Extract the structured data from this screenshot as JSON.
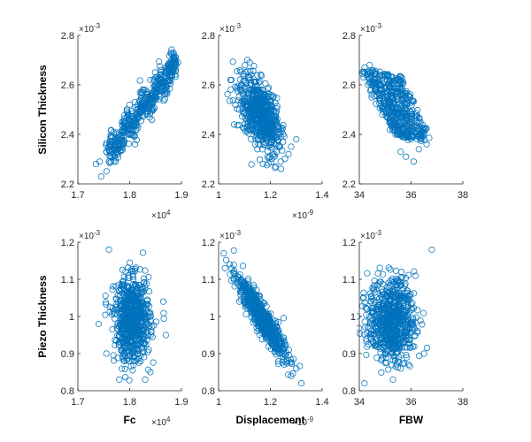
{
  "chart_data": {
    "type": "scatter",
    "marker": "open-circle",
    "color": "#0072BD",
    "grid": false,
    "x_labels": [
      "Fc",
      "Displacement",
      "FBW"
    ],
    "y_labels": [
      "Silicon Thickness",
      "Piezo Thickness"
    ],
    "multiplier_labels": {
      "x10e4": "×10^4",
      "x10e-9": "×10^-9",
      "x10e-3": "×10^-3"
    },
    "panels": [
      {
        "row": 0,
        "col": 0,
        "xlabel": "",
        "ylabel": "Silicon Thickness",
        "xlim": [
          17000,
          19000
        ],
        "ylim": [
          0.0022,
          0.0028
        ],
        "xticks": [
          17000,
          18000,
          19000
        ],
        "xtick_labels": [
          "1.7",
          "1.8",
          "1.9"
        ],
        "yticks": [
          0.0022,
          0.0024,
          0.0026,
          0.0028
        ],
        "ytick_labels": [
          "2.2",
          "2.4",
          "2.6",
          "2.8"
        ],
        "x_exponent": "×10^4",
        "y_exponent": "×10^-3",
        "points": [
          [
            17350,
            0.00228
          ],
          [
            17450,
            0.00223
          ],
          [
            17420,
            0.00229
          ],
          [
            17550,
            0.00233
          ],
          [
            17650,
            0.00234
          ],
          [
            17750,
            0.0024
          ],
          [
            17850,
            0.00245
          ],
          [
            17950,
            0.0025
          ],
          [
            18000,
            0.00252
          ],
          [
            18100,
            0.00253
          ],
          [
            18200,
            0.00257
          ],
          [
            18300,
            0.00258
          ],
          [
            18400,
            0.00262
          ],
          [
            18500,
            0.00263
          ],
          [
            18600,
            0.00266
          ],
          [
            18700,
            0.00267
          ],
          [
            18800,
            0.00269
          ],
          [
            18850,
            0.0027
          ],
          [
            18900,
            0.00268
          ],
          [
            17600,
            0.00229
          ]
        ],
        "clusters": [
          {
            "type": "band",
            "from": [
              17580,
              0.00232
            ],
            "to": [
              18900,
              0.00268
            ],
            "half_width_y": 6.5e-05,
            "n": 450
          }
        ]
      },
      {
        "row": 0,
        "col": 1,
        "xlabel": "",
        "ylabel": "",
        "xlim": [
          1e-09,
          1.4e-09
        ],
        "ylim": [
          0.0022,
          0.0028
        ],
        "xticks": [
          1e-09,
          1.2e-09,
          1.4e-09
        ],
        "xtick_labels": [
          "1",
          "1.2",
          "1.4"
        ],
        "yticks": [
          0.0022,
          0.0024,
          0.0026,
          0.0028
        ],
        "ytick_labels": [
          "2.2",
          "2.4",
          "2.6",
          "2.8"
        ],
        "x_exponent": "×10^-9",
        "y_exponent": "×10^-3",
        "points": [
          [
            1.12e-09,
            0.00269
          ],
          [
            1.27e-09,
            0.00232
          ],
          [
            1.24e-09,
            0.00229
          ],
          [
            1.08e-09,
            0.0025
          ],
          [
            1.15e-09,
            0.00234
          ],
          [
            1.3e-09,
            0.00238
          ],
          [
            1.05e-09,
            0.00262
          ],
          [
            1.22e-09,
            0.00227
          ],
          [
            1.28e-09,
            0.00235
          ],
          [
            1.06e-09,
            0.00244
          ]
        ],
        "clusters": [
          {
            "type": "blob",
            "center": [
              1.16e-09,
              0.00248
            ],
            "sd": [
              4e-11,
              7.5e-05
            ],
            "rho": -0.55,
            "n": 650
          }
        ]
      },
      {
        "row": 0,
        "col": 2,
        "xlabel": "",
        "ylabel": "",
        "xlim": [
          34,
          38
        ],
        "ylim": [
          0.0022,
          0.0028
        ],
        "xticks": [
          34,
          36,
          38
        ],
        "xtick_labels": [
          "34",
          "36",
          "38"
        ],
        "yticks": [
          0.0022,
          0.0024,
          0.0026,
          0.0028
        ],
        "ytick_labels": [
          "2.2",
          "2.4",
          "2.6",
          "2.8"
        ],
        "x_exponent": "",
        "y_exponent": "×10^-3",
        "points": [
          [
            34.2,
            0.00267
          ],
          [
            34.4,
            0.00268
          ],
          [
            34.6,
            0.00265
          ],
          [
            36.3,
            0.00234
          ],
          [
            36.6,
            0.00236
          ],
          [
            36.1,
            0.00229
          ],
          [
            35.6,
            0.00233
          ],
          [
            35.8,
            0.00231
          ],
          [
            36.0,
            0.00238
          ],
          [
            34.9,
            0.00263
          ]
        ],
        "clusters": [
          {
            "type": "stripes",
            "x_range": [
              34.3,
              36.6
            ],
            "y_top": 0.00264,
            "y_bottom": 0.00239,
            "count": 12,
            "n": 500
          }
        ]
      },
      {
        "row": 1,
        "col": 0,
        "xlabel": "Fc",
        "ylabel": "Piezo Thickness",
        "xlim": [
          17000,
          19000
        ],
        "ylim": [
          0.0008,
          0.0012
        ],
        "xticks": [
          17000,
          18000,
          19000
        ],
        "xtick_labels": [
          "1.7",
          "1.8",
          "1.9"
        ],
        "yticks": [
          0.0008,
          0.0009,
          0.001,
          0.0011,
          0.0012
        ],
        "ytick_labels": [
          "0.8",
          "0.9",
          "1",
          "1.1",
          "1.2"
        ],
        "x_exponent": "×10^4",
        "y_exponent": "×10^-3",
        "points": [
          [
            17600,
            0.00118
          ],
          [
            17400,
            0.00098
          ],
          [
            18400,
            0.00085
          ],
          [
            18300,
            0.00083
          ],
          [
            18650,
            0.00104
          ],
          [
            17550,
            0.0009
          ],
          [
            18700,
            0.00095
          ],
          [
            17800,
            0.00083
          ]
        ],
        "clusters": [
          {
            "type": "blob",
            "center": [
              18050,
              0.00099
            ],
            "sd": [
              170,
              5.5e-05
            ],
            "rho": 0,
            "n": 700
          }
        ]
      },
      {
        "row": 1,
        "col": 1,
        "xlabel": "Displacement",
        "ylabel": "",
        "xlim": [
          1e-09,
          1.4e-09
        ],
        "ylim": [
          0.0008,
          0.0012
        ],
        "xticks": [
          1e-09,
          1.2e-09,
          1.4e-09
        ],
        "xtick_labels": [
          "1",
          "1.2",
          "1.4"
        ],
        "yticks": [
          0.0008,
          0.0009,
          0.001,
          0.0011,
          0.0012
        ],
        "ytick_labels": [
          "0.8",
          "0.9",
          "1",
          "1.1",
          "1.2"
        ],
        "x_exponent": "×10^-9",
        "y_exponent": "×10^-3",
        "points": [
          [
            1.02e-09,
            0.00117
          ],
          [
            1.05e-09,
            0.00113
          ],
          [
            1.32e-09,
            0.00082
          ],
          [
            1.3e-09,
            0.00086
          ],
          [
            1.28e-09,
            0.00084
          ],
          [
            1.08e-09,
            0.00104
          ]
        ],
        "clusters": [
          {
            "type": "blob",
            "center": [
              1.165e-09,
              0.001
            ],
            "sd": [
              4.5e-11,
              5.2e-05
            ],
            "rho": -0.92,
            "n": 700
          }
        ]
      },
      {
        "row": 1,
        "col": 2,
        "xlabel": "FBW",
        "ylabel": "",
        "xlim": [
          34,
          38
        ],
        "ylim": [
          0.0008,
          0.0012
        ],
        "xticks": [
          34,
          36,
          38
        ],
        "xtick_labels": [
          "34",
          "36",
          "38"
        ],
        "yticks": [
          0.0008,
          0.0009,
          0.001,
          0.0011,
          0.0012
        ],
        "ytick_labels": [
          "0.8",
          "0.9",
          "1",
          "1.1",
          "1.2"
        ],
        "x_exponent": "",
        "y_exponent": "×10^-3",
        "points": [
          [
            36.8,
            0.00118
          ],
          [
            34.2,
            0.00082
          ],
          [
            35.3,
            0.00083
          ],
          [
            35.9,
            0.00087
          ],
          [
            36.5,
            0.0009
          ],
          [
            34.3,
            0.00102
          ],
          [
            35.6,
            0.00086
          ]
        ],
        "clusters": [
          {
            "type": "blob",
            "center": [
              35.25,
              0.00099
            ],
            "sd": [
              0.45,
              5.5e-05
            ],
            "rho": 0,
            "n": 700
          }
        ]
      }
    ]
  }
}
